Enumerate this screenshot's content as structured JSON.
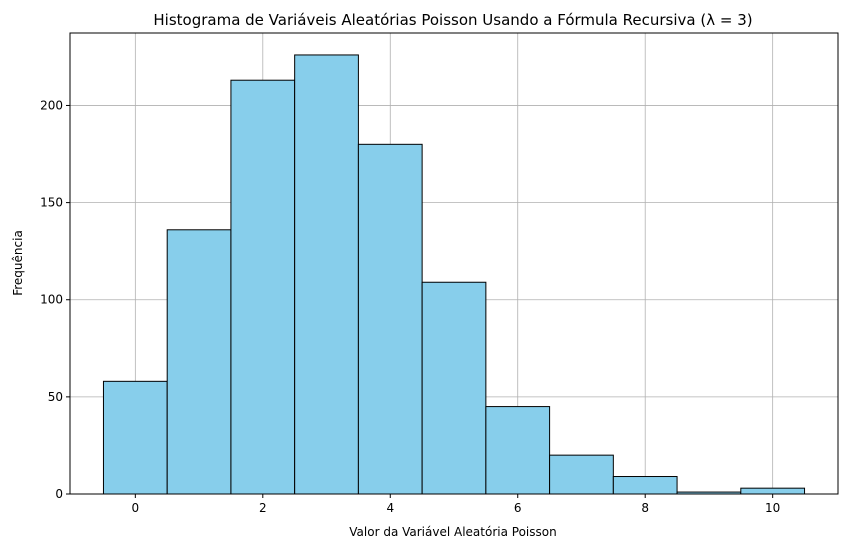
{
  "chart_data": {
    "type": "bar",
    "title": "Histograma de Variáveis Aleatórias Poisson Usando a Fórmula Recursiva (λ = 3)",
    "xlabel": "Valor da Variável Aleatória Poisson",
    "ylabel": "Frequência",
    "categories": [
      "0",
      "1",
      "2",
      "3",
      "4",
      "5",
      "6",
      "7",
      "8",
      "9",
      "10"
    ],
    "values": [
      58,
      136,
      213,
      226,
      180,
      109,
      45,
      20,
      9,
      1,
      3
    ],
    "bin_edges": [
      -0.5,
      0.5,
      1.5,
      2.5,
      3.5,
      4.5,
      5.5,
      6.5,
      7.5,
      8.5,
      9.5,
      10.5
    ],
    "xlim": [
      -1.025,
      11.025
    ],
    "ylim": [
      0,
      237.3
    ],
    "xticks": [
      0,
      2,
      4,
      6,
      8,
      10
    ],
    "yticks": [
      0,
      50,
      100,
      150,
      200
    ],
    "grid": true,
    "bar_color": "#87CEEB",
    "edge_color": "#000000",
    "grid_color": "#b0b0b0"
  }
}
